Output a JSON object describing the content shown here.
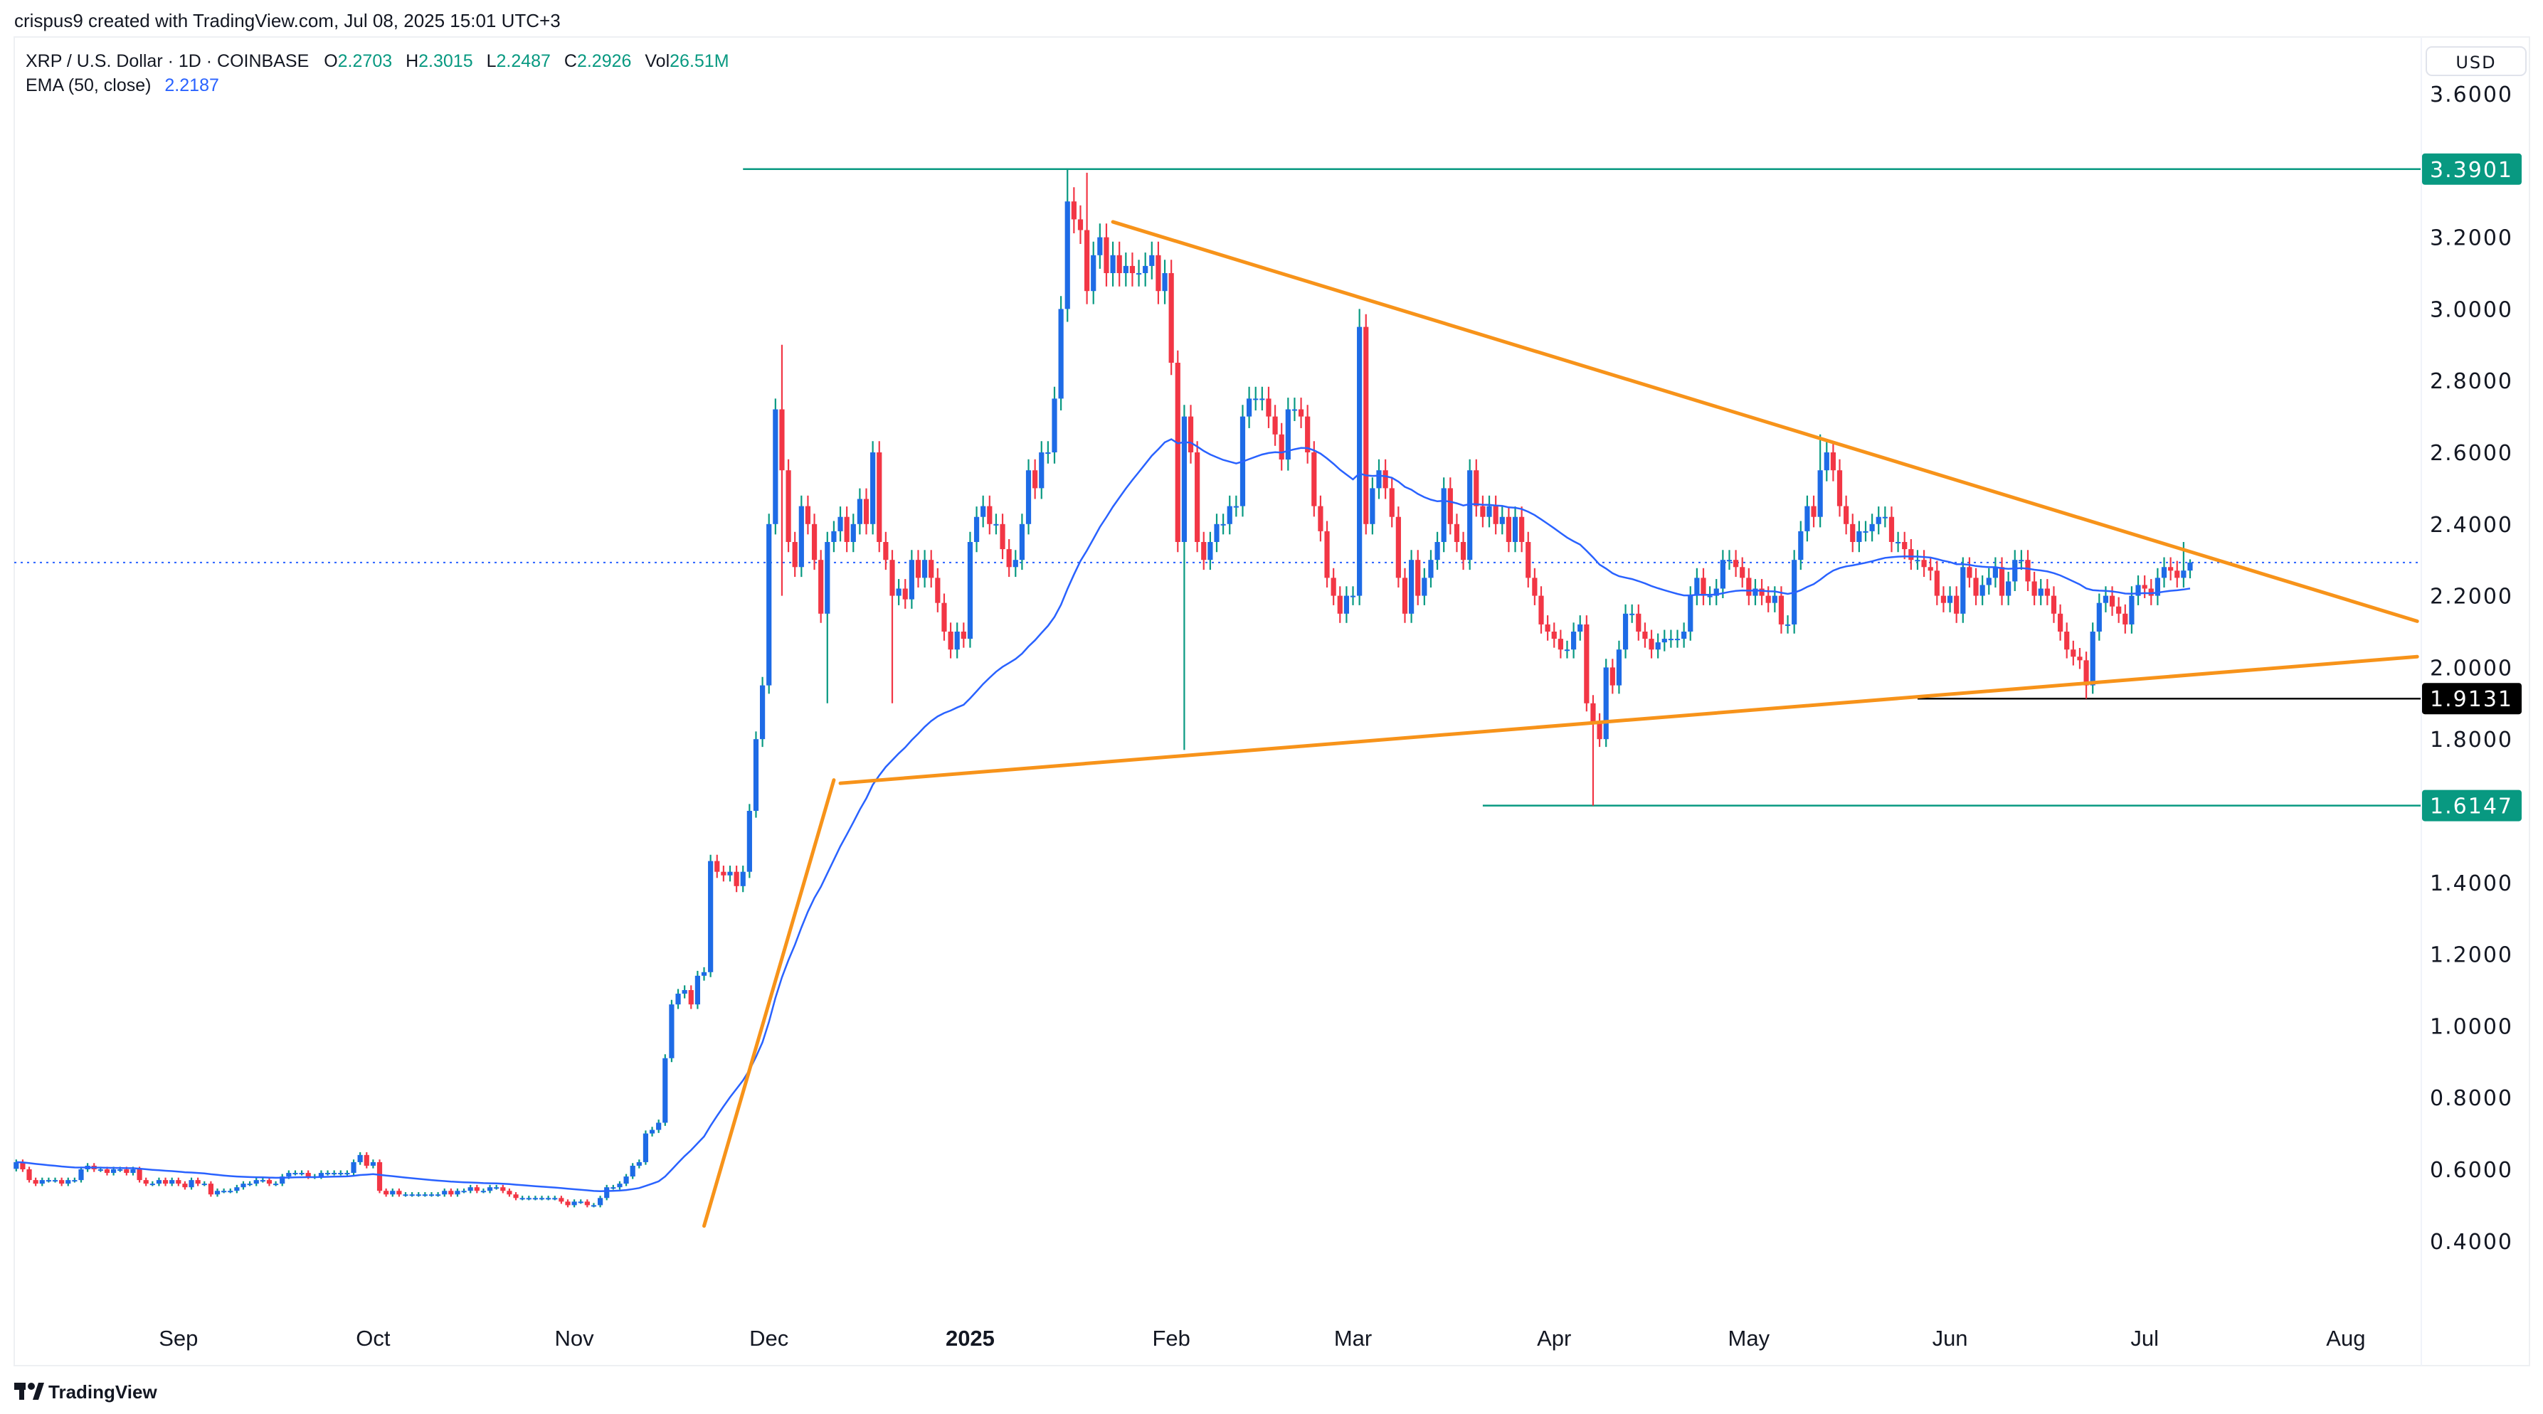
{
  "header": {
    "credit": "crispus9 created with TradingView.com, Jul 08, 2025 15:01 UTC+3"
  },
  "legend": {
    "symbol": "XRP / U.S. Dollar · 1D · COINBASE",
    "o_label": "O",
    "o": "2.2703",
    "h_label": "H",
    "h": "2.3015",
    "l_label": "L",
    "l": "2.2487",
    "c_label": "C",
    "c": "2.2926",
    "vol_label": "Vol",
    "vol": "26.51M",
    "ema_label": "EMA (50, close)",
    "ema_value": "2.2187"
  },
  "currency_button": "USD",
  "footer": {
    "logo_text": "TradingView"
  },
  "colors": {
    "up_body": "#1e6be6",
    "up_wick": "#089981",
    "down": "#f23645",
    "ema": "#2962ff",
    "trendline": "#f7931a",
    "level_teal": "#089981",
    "level_black": "#000000",
    "last_price": "#2962ff"
  },
  "chart_data": {
    "type": "candlestick",
    "interval": "1D",
    "ylim": [
      0.3,
      3.7
    ],
    "price_ticks": [
      "3.6000",
      "3.2000",
      "3.0000",
      "2.8000",
      "2.6000",
      "2.4000",
      "2.2000",
      "2.0000",
      "1.8000",
      "1.4000",
      "1.2000",
      "1.0000",
      "0.8000",
      "0.6000",
      "0.4000"
    ],
    "time_ticks": [
      {
        "label": "Sep",
        "date": "2024-09-01"
      },
      {
        "label": "Oct",
        "date": "2024-10-01"
      },
      {
        "label": "Nov",
        "date": "2024-11-01"
      },
      {
        "label": "Dec",
        "date": "2024-12-01"
      },
      {
        "label": "2025",
        "date": "2025-01-01",
        "bold": true
      },
      {
        "label": "Feb",
        "date": "2025-02-01"
      },
      {
        "label": "Mar",
        "date": "2025-03-01"
      },
      {
        "label": "Apr",
        "date": "2025-04-01"
      },
      {
        "label": "May",
        "date": "2025-05-01"
      },
      {
        "label": "Jun",
        "date": "2025-06-01"
      },
      {
        "label": "Jul",
        "date": "2025-07-01"
      },
      {
        "label": "Aug",
        "date": "2025-08-01"
      }
    ],
    "closes_by_month": {
      "2024-08": [
        0.62,
        0.6,
        0.57,
        0.56,
        0.57,
        0.57,
        0.57,
        0.56,
        0.57,
        0.57,
        0.6,
        0.61,
        0.6,
        0.6,
        0.59,
        0.6,
        0.6,
        0.59,
        0.6,
        0.57,
        0.56,
        0.56,
        0.57,
        0.56,
        0.57
      ],
      "2024-09": [
        0.56,
        0.55,
        0.57,
        0.56,
        0.56,
        0.53,
        0.54,
        0.54,
        0.54,
        0.55,
        0.56,
        0.56,
        0.57,
        0.57,
        0.56,
        0.56,
        0.58,
        0.59,
        0.59,
        0.59,
        0.58,
        0.58,
        0.59,
        0.59,
        0.59,
        0.59,
        0.59,
        0.62,
        0.64,
        0.61
      ],
      "2024-10": [
        0.62,
        0.54,
        0.53,
        0.54,
        0.53,
        0.53,
        0.53,
        0.53,
        0.53,
        0.53,
        0.53,
        0.54,
        0.53,
        0.54,
        0.54,
        0.55,
        0.54,
        0.54,
        0.55,
        0.55,
        0.54,
        0.53,
        0.52,
        0.52,
        0.52,
        0.52,
        0.52,
        0.52,
        0.52,
        0.51,
        0.5
      ],
      "2024-11": [
        0.51,
        0.51,
        0.5,
        0.5,
        0.52,
        0.55,
        0.55,
        0.56,
        0.58,
        0.61,
        0.62,
        0.7,
        0.71,
        0.73,
        0.91,
        1.06,
        1.09,
        1.1,
        1.06,
        1.14,
        1.15,
        1.46,
        1.43,
        1.42,
        1.43,
        1.39,
        1.43,
        1.6,
        1.8,
        1.95
      ],
      "2024-12": [
        2.4,
        2.72,
        2.55,
        2.35,
        2.28,
        2.45,
        2.4,
        2.3,
        2.15,
        2.35,
        2.38,
        2.42,
        2.35,
        2.4,
        2.47,
        2.4,
        2.6,
        2.35,
        2.3,
        2.2,
        2.22,
        2.19,
        2.3,
        2.25,
        2.3,
        2.25,
        2.18,
        2.1,
        2.05,
        2.1,
        2.08
      ],
      "2025-01": [
        2.35,
        2.42,
        2.45,
        2.4,
        2.4,
        2.33,
        2.28,
        2.3,
        2.4,
        2.55,
        2.5,
        2.6,
        2.6,
        2.75,
        3.0,
        3.3,
        3.25,
        3.22,
        3.05,
        3.15,
        3.2,
        3.1,
        3.15,
        3.1,
        3.12,
        3.1,
        3.1,
        3.12,
        3.15,
        3.05,
        3.1
      ],
      "2025-02": [
        2.85,
        2.35,
        2.7,
        2.6,
        2.35,
        2.3,
        2.35,
        2.4,
        2.4,
        2.45,
        2.45,
        2.7,
        2.75,
        2.75,
        2.75,
        2.7,
        2.65,
        2.58,
        2.72,
        2.72,
        2.7,
        2.6,
        2.45,
        2.38,
        2.25,
        2.2,
        2.15,
        2.2
      ],
      "2025-03": [
        2.2,
        2.95,
        2.4,
        2.5,
        2.55,
        2.5,
        2.42,
        2.25,
        2.15,
        2.3,
        2.2,
        2.25,
        2.3,
        2.35,
        2.5,
        2.4,
        2.35,
        2.3,
        2.55,
        2.45,
        2.42,
        2.45,
        2.4,
        2.42,
        2.35,
        2.42,
        2.35,
        2.25,
        2.2,
        2.12,
        2.1
      ],
      "2025-04": [
        2.08,
        2.05,
        2.05,
        2.1,
        2.12,
        1.9,
        1.85,
        1.8,
        2.0,
        1.95,
        2.05,
        2.15,
        2.15,
        2.1,
        2.08,
        2.05,
        2.07,
        2.08,
        2.08,
        2.08,
        2.1,
        2.2,
        2.25,
        2.2,
        2.2,
        2.22,
        2.3,
        2.3,
        2.28,
        2.25
      ],
      "2025-05": [
        2.2,
        2.22,
        2.2,
        2.18,
        2.2,
        2.12,
        2.12,
        2.3,
        2.38,
        2.45,
        2.42,
        2.55,
        2.6,
        2.55,
        2.45,
        2.4,
        2.35,
        2.38,
        2.38,
        2.4,
        2.42,
        2.42,
        2.35,
        2.35,
        2.33,
        2.3,
        2.3,
        2.28,
        2.27,
        2.2,
        2.18
      ],
      "2025-06": [
        2.2,
        2.15,
        2.28,
        2.25,
        2.2,
        2.23,
        2.25,
        2.28,
        2.2,
        2.24,
        2.3,
        2.3,
        2.24,
        2.2,
        2.22,
        2.2,
        2.15,
        2.1,
        2.05,
        2.03,
        2.02,
        1.95,
        2.1,
        2.18,
        2.2,
        2.17,
        2.15,
        2.12,
        2.2,
        2.23
      ],
      "2025-07": [
        2.22,
        2.2,
        2.25,
        2.28,
        2.27,
        2.25,
        2.2703,
        2.2926
      ]
    },
    "last_candle": {
      "date": "2025-07-08",
      "open": 2.2703,
      "high": 2.3015,
      "low": 2.2487,
      "close": 2.2926
    },
    "notable_wicks": [
      {
        "date": "2024-12-02",
        "high": 2.75
      },
      {
        "date": "2024-12-03",
        "high": 2.9,
        "low": 2.2
      },
      {
        "date": "2024-12-10",
        "low": 1.9
      },
      {
        "date": "2024-12-20",
        "low": 1.9
      },
      {
        "date": "2025-01-16",
        "high": 3.3901
      },
      {
        "date": "2025-01-19",
        "high": 3.38
      },
      {
        "date": "2025-02-03",
        "low": 1.77
      },
      {
        "date": "2025-03-02",
        "high": 3.0
      },
      {
        "date": "2025-04-07",
        "low": 1.6147
      },
      {
        "date": "2025-05-12",
        "high": 2.65
      },
      {
        "date": "2025-06-22",
        "low": 1.9131
      },
      {
        "date": "2025-07-07",
        "high": 2.35
      }
    ],
    "indicator": {
      "name": "EMA",
      "length": 50,
      "source": "close"
    },
    "last_price_line": 2.2926,
    "levels": [
      {
        "price": 3.3901,
        "label": "3.3901",
        "from": "2024-11-27",
        "color": "teal"
      },
      {
        "price": 1.9131,
        "label": "1.9131",
        "from": "2025-05-27",
        "color": "black"
      },
      {
        "price": 1.6147,
        "label": "1.6147",
        "from": "2025-03-21",
        "color": "teal"
      }
    ],
    "trendlines": [
      {
        "from": {
          "date": "2025-01-23",
          "price": 3.243
        },
        "to": {
          "date": "2025-08-12",
          "price": 2.129
        }
      },
      {
        "from": {
          "date": "2024-12-12",
          "price": 1.677
        },
        "to": {
          "date": "2025-08-12",
          "price": 2.03
        }
      },
      {
        "from": {
          "date": "2024-11-21",
          "price": 0.442
        },
        "to": {
          "date": "2024-12-11",
          "price": 1.686
        }
      }
    ]
  }
}
